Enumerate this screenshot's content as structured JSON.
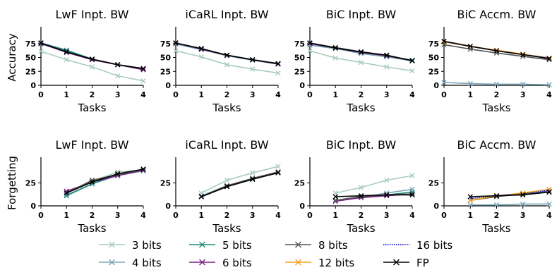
{
  "colors": {
    "3 bits": "#a8cdbf",
    "4 bits": "#7aa6b8",
    "5 bits": "#1a8a7a",
    "6 bits": "#7a1f86",
    "8 bits": "#555555",
    "12 bits": "#f2a21c",
    "16 bits": "#2424c8",
    "FP": "#000000"
  },
  "legend": {
    "items": [
      "3 bits",
      "4 bits",
      "5 bits",
      "6 bits",
      "8 bits",
      "12 bits",
      "16 bits",
      "FP"
    ]
  },
  "chart_data": [
    {
      "type": "line",
      "title": "LwF Inpt. BW",
      "xlabel": "Tasks",
      "ylabel": "Accuracy",
      "x": [
        0,
        1,
        2,
        3,
        4
      ],
      "xlim": [
        0,
        4
      ],
      "ylim": [
        0,
        100
      ],
      "yticks": [
        0,
        25,
        50,
        75
      ],
      "series": [
        {
          "name": "3 bits",
          "values": [
            61,
            46,
            33,
            17,
            8
          ]
        },
        {
          "name": "4 bits",
          "values": [
            74,
            62,
            46,
            37,
            30
          ]
        },
        {
          "name": "5 bits",
          "values": [
            76,
            63,
            47,
            37,
            30
          ]
        },
        {
          "name": "6 bits",
          "values": [
            75,
            59,
            46,
            37,
            28
          ]
        },
        {
          "name": "8 bits",
          "values": [
            76,
            60,
            47,
            37,
            30
          ]
        },
        {
          "name": "FP",
          "values": [
            76,
            60,
            47,
            37,
            30
          ]
        }
      ]
    },
    {
      "type": "line",
      "title": "iCaRL Inpt. BW",
      "xlabel": "Tasks",
      "ylabel": "",
      "x": [
        0,
        1,
        2,
        3,
        4
      ],
      "xlim": [
        0,
        4
      ],
      "ylim": [
        0,
        100
      ],
      "yticks": [
        0,
        25,
        50,
        75
      ],
      "series": [
        {
          "name": "3 bits",
          "values": [
            62,
            51,
            37,
            29,
            22
          ]
        },
        {
          "name": "4 bits",
          "values": [
            74,
            64,
            53,
            45,
            38
          ]
        },
        {
          "name": "5 bits",
          "values": [
            76,
            65,
            54,
            46,
            39
          ]
        },
        {
          "name": "6 bits",
          "values": [
            76,
            65,
            54,
            46,
            38
          ]
        },
        {
          "name": "8 bits",
          "values": [
            76,
            66,
            54,
            46,
            39
          ]
        },
        {
          "name": "FP",
          "values": [
            76,
            66,
            54,
            46,
            39
          ]
        }
      ]
    },
    {
      "type": "line",
      "title": "BiC Inpt. BW",
      "xlabel": "Tasks",
      "ylabel": "",
      "x": [
        0,
        1,
        2,
        3,
        4
      ],
      "xlim": [
        0,
        4
      ],
      "ylim": [
        0,
        100
      ],
      "yticks": [
        0,
        25,
        50,
        75
      ],
      "series": [
        {
          "name": "3 bits",
          "values": [
            62,
            49,
            41,
            33,
            26
          ]
        },
        {
          "name": "4 bits",
          "values": [
            72,
            66,
            57,
            51,
            44
          ]
        },
        {
          "name": "5 bits",
          "values": [
            75,
            67,
            59,
            53,
            45
          ]
        },
        {
          "name": "6 bits",
          "values": [
            75,
            67,
            59,
            53,
            44
          ]
        },
        {
          "name": "8 bits",
          "values": [
            76,
            68,
            60,
            54,
            44
          ]
        },
        {
          "name": "FP",
          "values": [
            76,
            67,
            60,
            54,
            44
          ]
        }
      ]
    },
    {
      "type": "line",
      "title": "BiC Accm. BW",
      "xlabel": "Tasks",
      "ylabel": "",
      "x": [
        0,
        1,
        2,
        3,
        4
      ],
      "xlim": [
        0,
        4
      ],
      "ylim": [
        0,
        100
      ],
      "yticks": [
        0,
        25,
        50,
        75
      ],
      "series": [
        {
          "name": "4 bits",
          "values": [
            5,
            3,
            2,
            2,
            1
          ]
        },
        {
          "name": "8 bits",
          "values": [
            73,
            65,
            58,
            52,
            46
          ]
        },
        {
          "name": "12 bits",
          "values": [
            78,
            70,
            63,
            56,
            49
          ]
        },
        {
          "name": "16 bits",
          "values": [
            79,
            70,
            62,
            55,
            49
          ]
        },
        {
          "name": "FP",
          "values": [
            79,
            70,
            62,
            55,
            48
          ]
        }
      ]
    },
    {
      "type": "line",
      "title": "LwF Inpt. BW",
      "xlabel": "Tasks",
      "ylabel": "Forgetting",
      "x": [
        1,
        2,
        3,
        4
      ],
      "xlim": [
        0,
        4
      ],
      "ylim": [
        0,
        50
      ],
      "yticks": [
        0,
        25
      ],
      "series": [
        {
          "name": "3 bits",
          "values": [
            14,
            27,
            37,
            39
          ]
        },
        {
          "name": "4 bits",
          "values": [
            12,
            24,
            33,
            38
          ]
        },
        {
          "name": "5 bits",
          "values": [
            11,
            24,
            34,
            39
          ]
        },
        {
          "name": "6 bits",
          "values": [
            16,
            26,
            33,
            39
          ]
        },
        {
          "name": "8 bits",
          "values": [
            14,
            28,
            34,
            40
          ]
        },
        {
          "name": "FP",
          "values": [
            14,
            26,
            35,
            40
          ]
        }
      ]
    },
    {
      "type": "line",
      "title": "iCaRL Inpt. BW",
      "xlabel": "Tasks",
      "ylabel": "",
      "x": [
        1,
        2,
        3,
        4
      ],
      "xlim": [
        0,
        4
      ],
      "ylim": [
        0,
        50
      ],
      "yticks": [
        0,
        25
      ],
      "series": [
        {
          "name": "3 bits",
          "values": [
            14,
            28,
            36,
            43
          ]
        },
        {
          "name": "4 bits",
          "values": [
            11,
            22,
            29,
            37
          ]
        },
        {
          "name": "5 bits",
          "values": [
            10,
            21,
            29,
            37
          ]
        },
        {
          "name": "6 bits",
          "values": [
            10,
            21,
            30,
            37
          ]
        },
        {
          "name": "8 bits",
          "values": [
            10,
            22,
            30,
            37
          ]
        },
        {
          "name": "FP",
          "values": [
            10,
            21,
            29,
            36
          ]
        }
      ]
    },
    {
      "type": "line",
      "title": "BiC Inpt. BW",
      "xlabel": "Tasks",
      "ylabel": "",
      "x": [
        1,
        2,
        3,
        4
      ],
      "xlim": [
        0,
        4
      ],
      "ylim": [
        0,
        50
      ],
      "yticks": [
        0,
        25
      ],
      "series": [
        {
          "name": "3 bits",
          "values": [
            14,
            20,
            28,
            33
          ]
        },
        {
          "name": "4 bits",
          "values": [
            6,
            9,
            14,
            18
          ]
        },
        {
          "name": "5 bits",
          "values": [
            6,
            10,
            12,
            15
          ]
        },
        {
          "name": "6 bits",
          "values": [
            5,
            9,
            11,
            13
          ]
        },
        {
          "name": "8 bits",
          "values": [
            6,
            10,
            12,
            13
          ]
        },
        {
          "name": "FP",
          "values": [
            10,
            11,
            12,
            12
          ]
        }
      ]
    },
    {
      "type": "line",
      "title": "BiC Accm. BW",
      "xlabel": "Tasks",
      "ylabel": "",
      "x": [
        1,
        2,
        3,
        4
      ],
      "xlim": [
        0,
        4
      ],
      "ylim": [
        0,
        50
      ],
      "yticks": [
        0,
        25
      ],
      "series": [
        {
          "name": "4 bits",
          "values": [
            1,
            1,
            2,
            2
          ]
        },
        {
          "name": "8 bits",
          "values": [
            6,
            10,
            13,
            16
          ]
        },
        {
          "name": "12 bits",
          "values": [
            6,
            11,
            14,
            18
          ]
        },
        {
          "name": "16 bits",
          "values": [
            8,
            11,
            13,
            17
          ]
        },
        {
          "name": "FP",
          "values": [
            10,
            11,
            12,
            15
          ]
        }
      ]
    }
  ]
}
